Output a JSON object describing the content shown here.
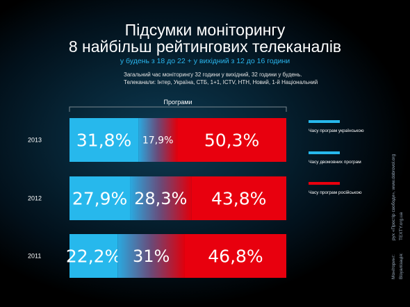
{
  "title_line1": "Підсумки моніторингу",
  "title_line2": "8 найбільш рейтингових телеканалів",
  "subtitle": "у будень з 18 до 22 + у вихідний з 12 до 16 години",
  "info_line1": "Загальний час моніторингу  32 години у вихідний, 32 години у будень.",
  "info_line2": "Телеканали: Інтер, Україна, СТБ, 1+1, ICTV, НТН, Новий, 1-й Національний",
  "side_label_1": "Моніторинг:",
  "side_value_1": "рух «Простір свободи», www.dobrovol.org",
  "side_label_2": "Візуалізація:",
  "side_value_2": "TEXTY.org.ua",
  "colors": {
    "ukrainian": "#27b8ec",
    "russian": "#e8000e",
    "background": "#05202e"
  },
  "chart_data": {
    "type": "bar",
    "orientation": "horizontal",
    "stacked": true,
    "group_label": "Програми",
    "categories": [
      "2013",
      "2012",
      "2011"
    ],
    "series": [
      {
        "name": "Часу програм українською",
        "values": [
          31.8,
          27.9,
          22.2
        ],
        "labels": [
          "31,8%",
          "27,9%",
          "22,2%"
        ],
        "color": "#27b8ec"
      },
      {
        "name": "Часу двомовних програм",
        "values": [
          17.9,
          28.3,
          31
        ],
        "labels": [
          "17,9%",
          "28,3%",
          "31%"
        ],
        "color": "gradient"
      },
      {
        "name": "Часу програм російською",
        "values": [
          50.3,
          43.8,
          46.8
        ],
        "labels": [
          "50,3%",
          "43,8%",
          "46,8%"
        ],
        "color": "#e8000e"
      }
    ],
    "xlim": [
      0,
      100
    ]
  }
}
